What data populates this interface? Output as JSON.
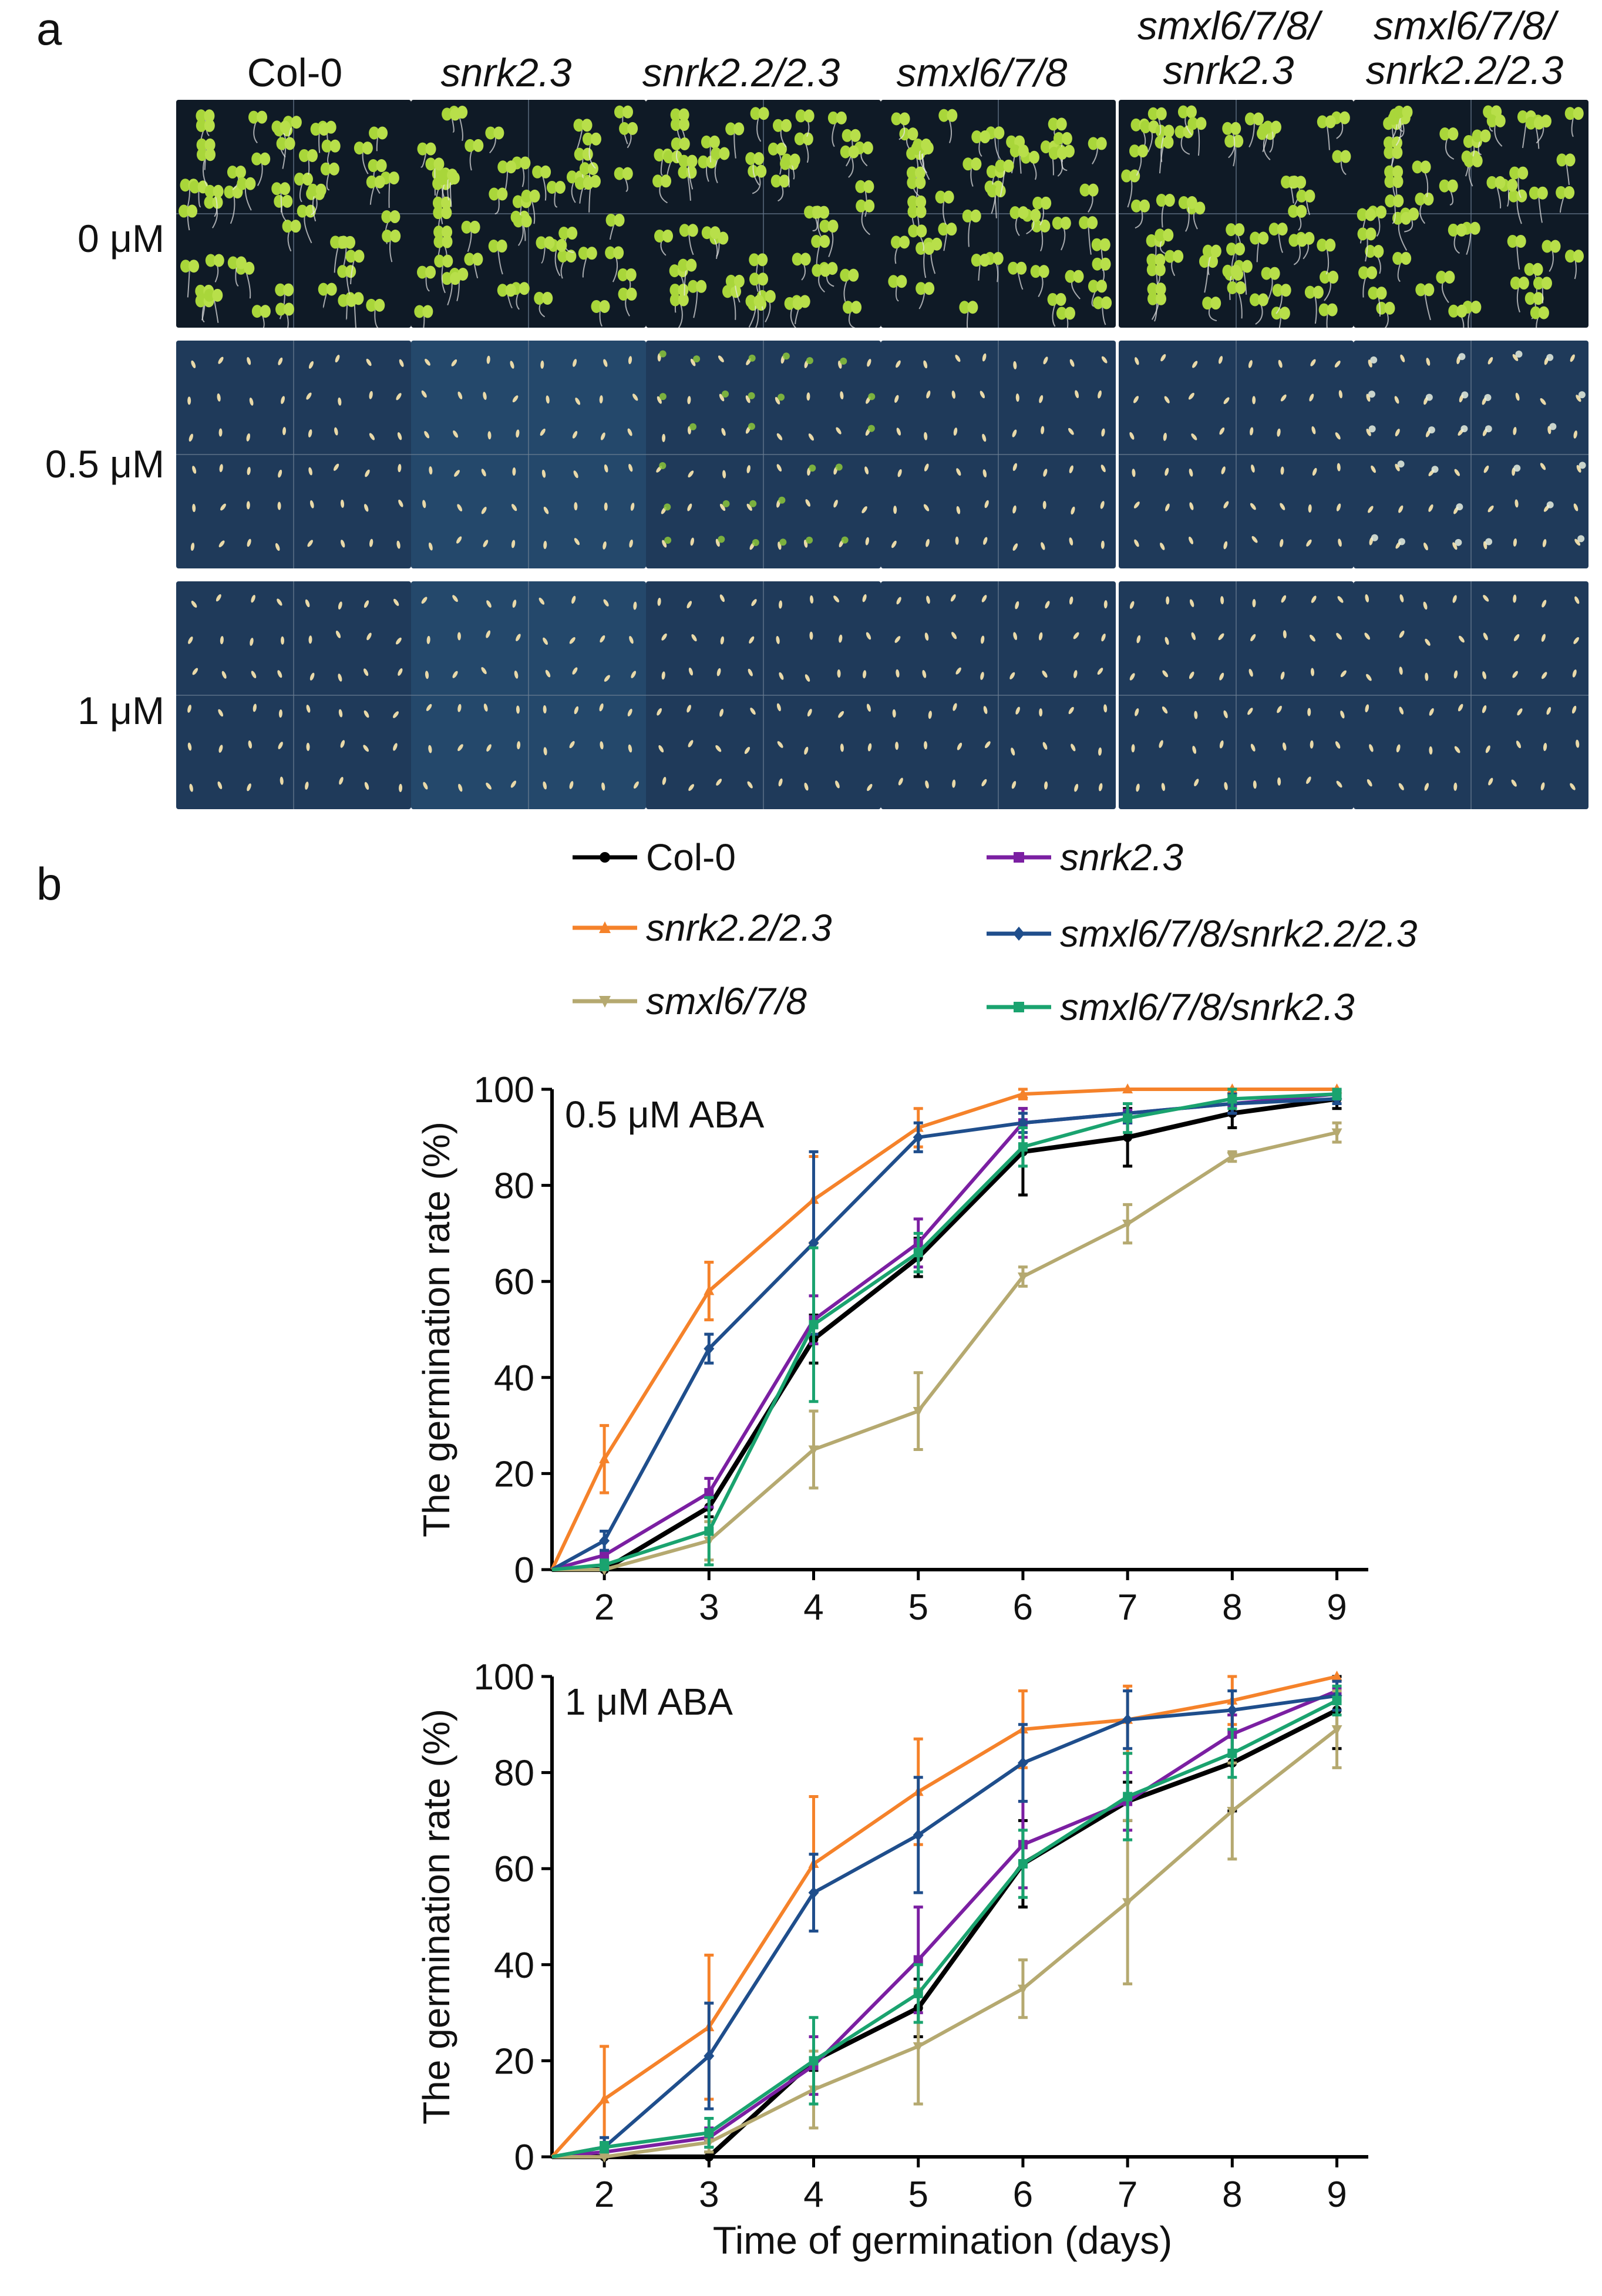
{
  "panel_a": {
    "letter": "a",
    "columns": [
      "Col-0",
      "snrk2.3",
      "snrk2.2/2.3",
      "smxl6/7/8",
      "smxl6/7/8/ snrk2.3",
      "smxl6/7/8/ snrk2.2/2.3"
    ],
    "rows": [
      "0 μM",
      "0.5 μM",
      "1 μM"
    ],
    "colors": {
      "plate_dark": "#0f1a26",
      "plate_blue": "#1f3a5a",
      "cotyledon": "#a9d63a",
      "seed": "#e9d9a8"
    }
  },
  "panel_b": {
    "letter": "b",
    "legend": [
      {
        "label": "Col-0",
        "color": "#000000",
        "marker": "circle"
      },
      {
        "label": "snrk2.3",
        "color": "#7b1fa2",
        "marker": "square"
      },
      {
        "label": "snrk2.2/2.3",
        "color": "#f5822a",
        "marker": "triangle"
      },
      {
        "label": "smxl6/7/8/snrk2.2/2.3",
        "color": "#1f4e8c",
        "marker": "diamond"
      },
      {
        "label": "smxl6/7/8",
        "color": "#b5a970",
        "marker": "triangle-down"
      },
      {
        "label": "smxl6/7/8/snrk2.3",
        "color": "#1aa36f",
        "marker": "square"
      }
    ]
  },
  "chart_data": [
    {
      "type": "line",
      "title": "0.5 μM ABA",
      "xlabel": "",
      "ylabel": "The germination rate (%)",
      "x": [
        1.5,
        2,
        3,
        4,
        5,
        6,
        7,
        8,
        9
      ],
      "xticks": [
        "2",
        "3",
        "4",
        "5",
        "6",
        "7",
        "8",
        "9"
      ],
      "yticks": [
        "0",
        "20",
        "40",
        "60",
        "80",
        "100"
      ],
      "xlim": [
        1.5,
        9.3
      ],
      "ylim": [
        0,
        100
      ],
      "series": [
        {
          "name": "Col-0",
          "color": "#000000",
          "values": [
            0,
            0,
            13,
            48,
            65,
            87,
            90,
            95,
            98
          ],
          "errors": [
            0,
            1,
            2,
            5,
            4,
            9,
            6,
            3,
            2
          ]
        },
        {
          "name": "snrk2.3",
          "color": "#7b1fa2",
          "values": [
            0,
            3,
            16,
            52,
            68,
            93,
            95,
            97,
            99
          ],
          "errors": [
            0,
            1,
            3,
            5,
            5,
            3,
            2,
            2,
            1
          ]
        },
        {
          "name": "snrk2.2/2.3",
          "color": "#f5822a",
          "values": [
            0,
            23,
            58,
            77,
            92,
            99,
            100,
            100,
            100
          ],
          "errors": [
            0,
            7,
            6,
            9,
            4,
            1,
            0,
            0,
            0
          ]
        },
        {
          "name": "smxl6/7/8/snrk2.2/2.3",
          "color": "#1f4e8c",
          "values": [
            0,
            6,
            46,
            68,
            90,
            93,
            95,
            97,
            98
          ],
          "errors": [
            0,
            2,
            3,
            19,
            3,
            2,
            2,
            2,
            1
          ]
        },
        {
          "name": "smxl6/7/8",
          "color": "#b5a970",
          "values": [
            0,
            0,
            6,
            25,
            33,
            61,
            72,
            86,
            91
          ],
          "errors": [
            0,
            1,
            4,
            8,
            8,
            2,
            4,
            1,
            2
          ]
        },
        {
          "name": "smxl6/7/8/snrk2.3",
          "color": "#1aa36f",
          "values": [
            0,
            1,
            8,
            51,
            66,
            88,
            94,
            98,
            99
          ],
          "errors": [
            0,
            1,
            7,
            16,
            4,
            4,
            3,
            2,
            1
          ]
        }
      ]
    },
    {
      "type": "line",
      "title": "1 μM ABA",
      "xlabel": "Time of germination (days)",
      "ylabel": "The germination rate (%)",
      "x": [
        1.5,
        2,
        3,
        4,
        5,
        6,
        7,
        8,
        9
      ],
      "xticks": [
        "2",
        "3",
        "4",
        "5",
        "6",
        "7",
        "8",
        "9"
      ],
      "yticks": [
        "0",
        "20",
        "40",
        "60",
        "80",
        "100"
      ],
      "xlim": [
        1.5,
        9.3
      ],
      "ylim": [
        0,
        100
      ],
      "series": [
        {
          "name": "Col-0",
          "color": "#000000",
          "values": [
            0,
            0,
            0,
            20,
            31,
            61,
            74,
            82,
            93
          ],
          "errors": [
            0,
            1,
            1,
            2,
            6,
            9,
            4,
            10,
            8
          ]
        },
        {
          "name": "snrk2.3",
          "color": "#7b1fa2",
          "values": [
            0,
            1,
            4,
            19,
            41,
            65,
            74,
            88,
            97
          ],
          "errors": [
            0,
            1,
            2,
            6,
            11,
            9,
            6,
            4,
            2
          ]
        },
        {
          "name": "snrk2.2/2.3",
          "color": "#f5822a",
          "values": [
            0,
            12,
            27,
            61,
            76,
            89,
            91,
            95,
            100
          ],
          "errors": [
            0,
            11,
            15,
            14,
            11,
            8,
            7,
            5,
            0
          ]
        },
        {
          "name": "smxl6/7/8/snrk2.2/2.3",
          "color": "#1f4e8c",
          "values": [
            0,
            2,
            21,
            55,
            67,
            82,
            91,
            93,
            96
          ],
          "errors": [
            0,
            2,
            11,
            8,
            12,
            8,
            6,
            4,
            3
          ]
        },
        {
          "name": "smxl6/7/8",
          "color": "#b5a970",
          "values": [
            0,
            0,
            3,
            14,
            23,
            35,
            53,
            72,
            89
          ],
          "errors": [
            0,
            1,
            2,
            8,
            12,
            6,
            17,
            10,
            8
          ]
        },
        {
          "name": "smxl6/7/8/snrk2.3",
          "color": "#1aa36f",
          "values": [
            0,
            2,
            5,
            20,
            34,
            61,
            75,
            84,
            95
          ],
          "errors": [
            0,
            1,
            3,
            9,
            6,
            7,
            9,
            5,
            3
          ]
        }
      ]
    }
  ]
}
